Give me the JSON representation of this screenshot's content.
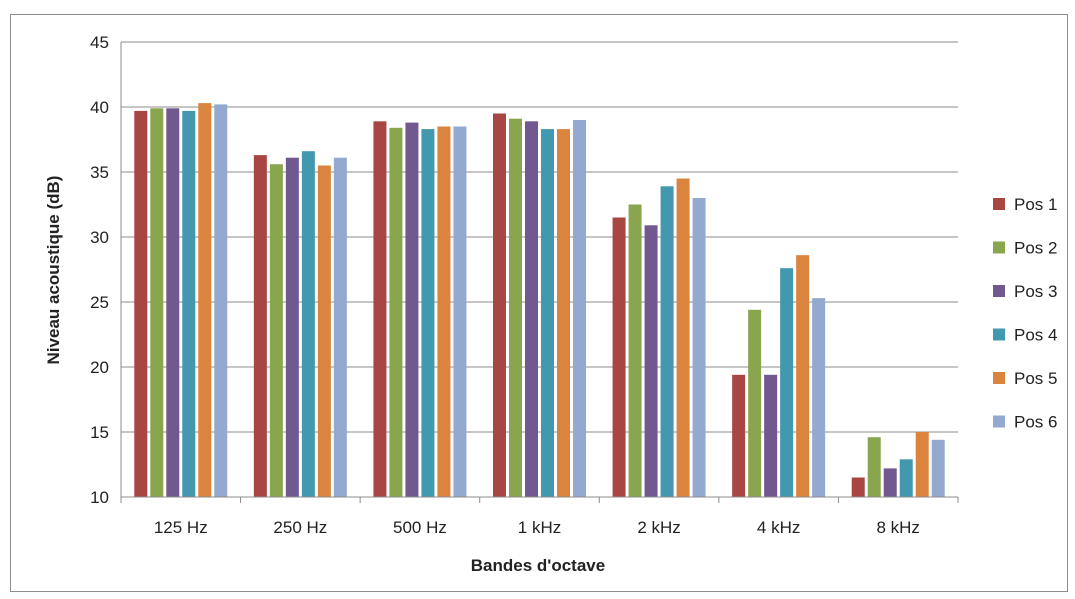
{
  "chart_data": {
    "type": "bar",
    "title": "",
    "xlabel": "Bandes d'octave",
    "ylabel": "Niveau acoustique (dB)",
    "ylim": [
      10,
      45
    ],
    "yticks": [
      10,
      15,
      20,
      25,
      30,
      35,
      40,
      45
    ],
    "grid": true,
    "legend_position": "right",
    "categories": [
      "125 Hz",
      "250 Hz",
      "500 Hz",
      "1 kHz",
      "2 kHz",
      "4 kHz",
      "8 kHz"
    ],
    "series": [
      {
        "name": "Pos 1",
        "color": "#A84644",
        "values": [
          39.7,
          36.3,
          38.9,
          39.5,
          31.5,
          19.4,
          11.5
        ]
      },
      {
        "name": "Pos 2",
        "color": "#89A54E",
        "values": [
          39.9,
          35.6,
          38.4,
          39.1,
          32.5,
          24.4,
          14.6
        ]
      },
      {
        "name": "Pos 3",
        "color": "#71588F",
        "values": [
          39.9,
          36.1,
          38.8,
          38.9,
          30.9,
          19.4,
          12.2
        ]
      },
      {
        "name": "Pos 4",
        "color": "#4198AF",
        "values": [
          39.7,
          36.6,
          38.3,
          38.3,
          33.9,
          27.6,
          12.9
        ]
      },
      {
        "name": "Pos 5",
        "color": "#DB843D",
        "values": [
          40.3,
          35.5,
          38.5,
          38.3,
          34.5,
          28.6,
          15.0
        ]
      },
      {
        "name": "Pos 6",
        "color": "#93A9CF",
        "values": [
          40.2,
          36.1,
          38.5,
          39.0,
          33.0,
          25.3,
          14.4
        ]
      }
    ]
  }
}
